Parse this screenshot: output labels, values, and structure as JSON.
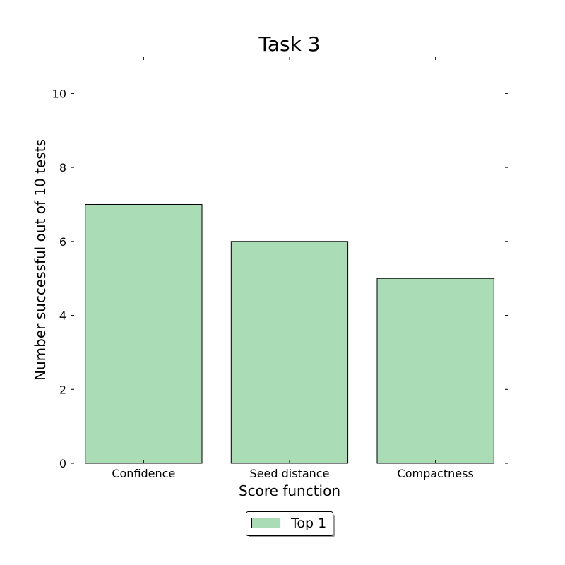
{
  "colors": {
    "bar_fill": "#aadcb6",
    "bar_edge": "#000000",
    "axes": "#000000",
    "background": "#ffffff"
  },
  "chart_data": {
    "type": "bar",
    "title": "Task 3",
    "xlabel": "Score function",
    "ylabel": "Number successful out of 10 tests",
    "categories": [
      "Confidence",
      "Seed distance",
      "Compactness"
    ],
    "series": [
      {
        "name": "Top 1",
        "values": [
          7,
          6,
          5
        ]
      }
    ],
    "ylim": [
      0,
      11
    ],
    "yticks": [
      0,
      2,
      4,
      6,
      8,
      10
    ],
    "grid": false,
    "legend_position": "bottom-center, below plot"
  }
}
